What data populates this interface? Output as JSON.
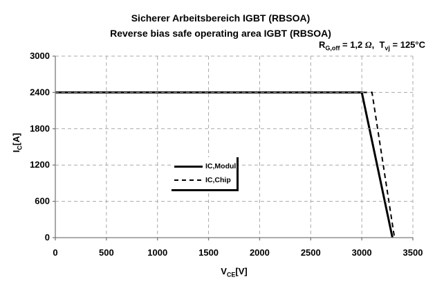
{
  "chart_data": {
    "type": "line",
    "title": "Sicherer Arbeitsbereich IGBT (RBSOA)",
    "subtitle": "Reverse bias safe operating area IGBT (RBSOA)",
    "annotation": {
      "text": "R_G,off = 1,2 Ω,  T_vj = 125°C",
      "r": "R",
      "r_sub": "G,off",
      "eq1": " = 1,2 ",
      "omega": "Ω",
      "eq2": ",  ",
      "t": "T",
      "t_sub": "vj",
      "eq3": " = 125°C"
    },
    "xlabel": {
      "sym": "V",
      "sub": "CE",
      "unit": "[V]"
    },
    "ylabel": {
      "sym": "I",
      "sub": "C",
      "unit": "[A]"
    },
    "xlim": [
      0,
      3500
    ],
    "ylim": [
      0,
      3000
    ],
    "x_ticks": [
      0,
      500,
      1000,
      1500,
      2000,
      2500,
      3000,
      3500
    ],
    "y_ticks": [
      0,
      600,
      1200,
      1800,
      2400,
      3000
    ],
    "grid": {
      "style": "dashed",
      "color": "#a8a8a8"
    },
    "axis_color": "#7a7a7a",
    "series": [
      {
        "name": "IC,Modul",
        "line_style": "solid",
        "color": "#000000",
        "stroke_width": 3,
        "points": [
          [
            0,
            2400
          ],
          [
            3000,
            2400
          ],
          [
            3300,
            0
          ]
        ]
      },
      {
        "name": "IC,Chip",
        "line_style": "dashed",
        "color": "#000000",
        "stroke_width": 2,
        "points": [
          [
            0,
            2400
          ],
          [
            3100,
            2400
          ],
          [
            3320,
            0
          ]
        ]
      }
    ],
    "legend_position": "center"
  }
}
